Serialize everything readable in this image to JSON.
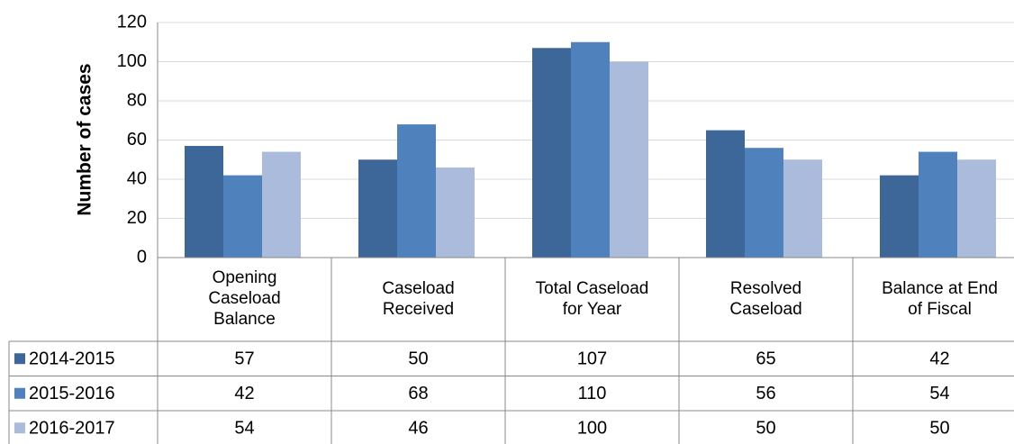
{
  "chart_data": {
    "type": "bar",
    "y_axis_title": "Number of cases",
    "categories": [
      "Opening Caseload Balance",
      "Caseload Received",
      "Total Caseload for Year",
      "Resolved Caseload",
      "Balance at End of Fiscal"
    ],
    "series": [
      {
        "name": "2014-2015",
        "color": "#3e6799",
        "values": [
          57,
          50,
          107,
          65,
          42
        ]
      },
      {
        "name": "2015-2016",
        "color": "#4f81bd",
        "values": [
          42,
          68,
          110,
          56,
          54
        ]
      },
      {
        "name": "2016-2017",
        "color": "#aabbdb",
        "values": [
          54,
          46,
          100,
          50,
          50
        ]
      }
    ],
    "ylim": [
      0,
      120
    ],
    "yticks": [
      0,
      20,
      40,
      60,
      80,
      100,
      120
    ],
    "grid": true,
    "data_table": true
  }
}
